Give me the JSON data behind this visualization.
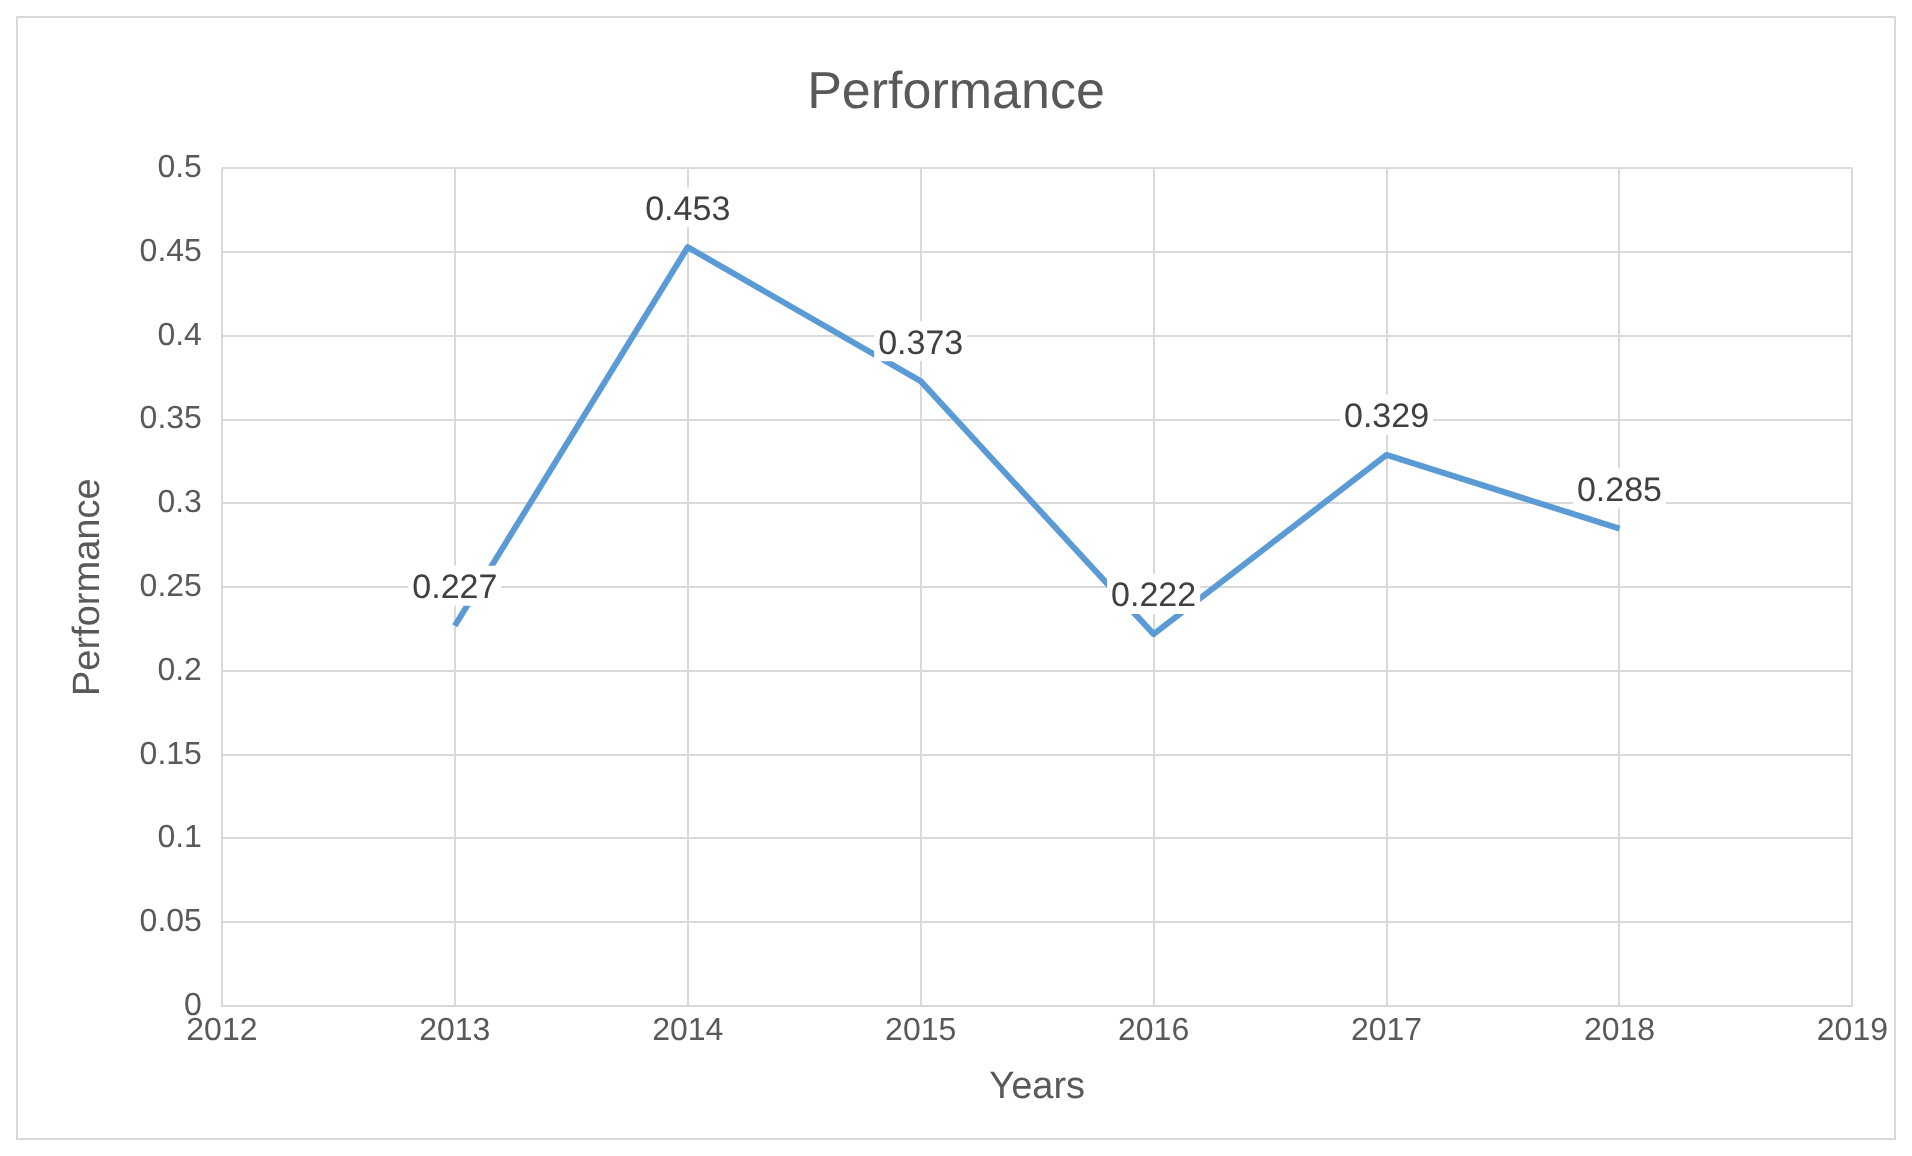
{
  "chart_data": {
    "type": "line",
    "title": "Performance",
    "xlabel": "Years",
    "ylabel": "Performance",
    "x": [
      2013,
      2014,
      2015,
      2016,
      2017,
      2018
    ],
    "series": [
      {
        "color": "#5b9bd5",
        "values": [
          0.227,
          0.453,
          0.373,
          0.222,
          0.329,
          0.285
        ]
      }
    ],
    "xlim": [
      2012,
      2019
    ],
    "xticks": [
      2012,
      2013,
      2014,
      2015,
      2016,
      2017,
      2018,
      2019
    ],
    "ylim": [
      0,
      0.5
    ],
    "yticks": [
      0,
      0.05,
      0.1,
      0.15,
      0.2,
      0.25,
      0.3,
      0.35,
      0.4,
      0.45,
      0.5
    ],
    "grid": true,
    "legend": false,
    "data_labels": true,
    "marker": "none",
    "line_style": "solid"
  }
}
